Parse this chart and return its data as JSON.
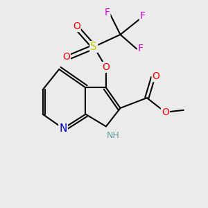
{
  "bg_color": "#ebebeb",
  "atom_colors": {
    "C": "#000000",
    "N": "#0000cd",
    "O": "#ff0000",
    "S": "#cccc00",
    "F": "#cc00cc",
    "H": "#5f9ea0"
  },
  "bond_color": "#000000",
  "bond_lw": 1.5,
  "font_size": 10,
  "figsize": [
    3.0,
    3.0
  ],
  "dpi": 100,
  "xlim": [
    0,
    10
  ],
  "ylim": [
    0,
    10
  ]
}
